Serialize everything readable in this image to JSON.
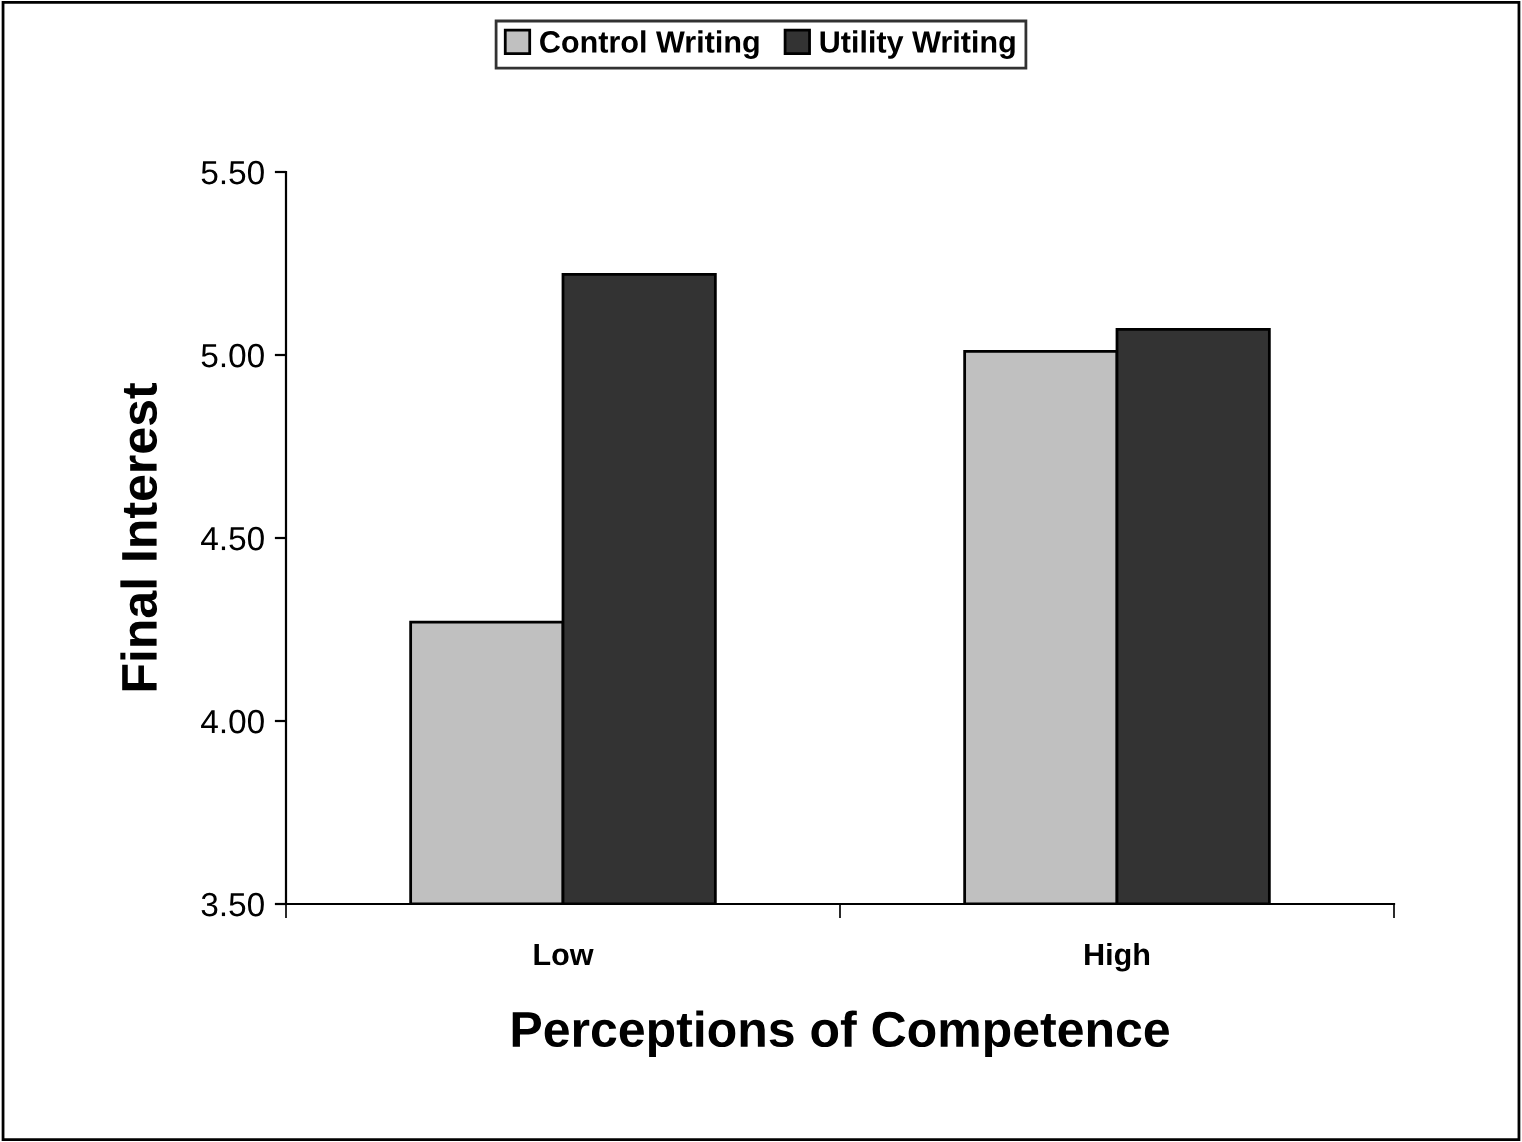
{
  "chart_data": {
    "type": "bar",
    "xlabel": "Perceptions of Competence",
    "ylabel": "Final Interest",
    "categories": [
      "Low",
      "High"
    ],
    "series": [
      {
        "name": "Control Writing",
        "color": "#c0c0c0",
        "values": [
          4.27,
          5.01
        ]
      },
      {
        "name": "Utility Writing",
        "color": "#333333",
        "values": [
          5.22,
          5.07
        ]
      }
    ],
    "ylim": [
      3.5,
      5.5
    ],
    "yticks": [
      {
        "value": 3.5,
        "label": "3.50"
      },
      {
        "value": 4.0,
        "label": "4.00"
      },
      {
        "value": 4.5,
        "label": "4.50"
      },
      {
        "value": 5.0,
        "label": "5.00"
      },
      {
        "value": 5.5,
        "label": "5.50"
      }
    ],
    "grid": false,
    "legend": "top"
  }
}
